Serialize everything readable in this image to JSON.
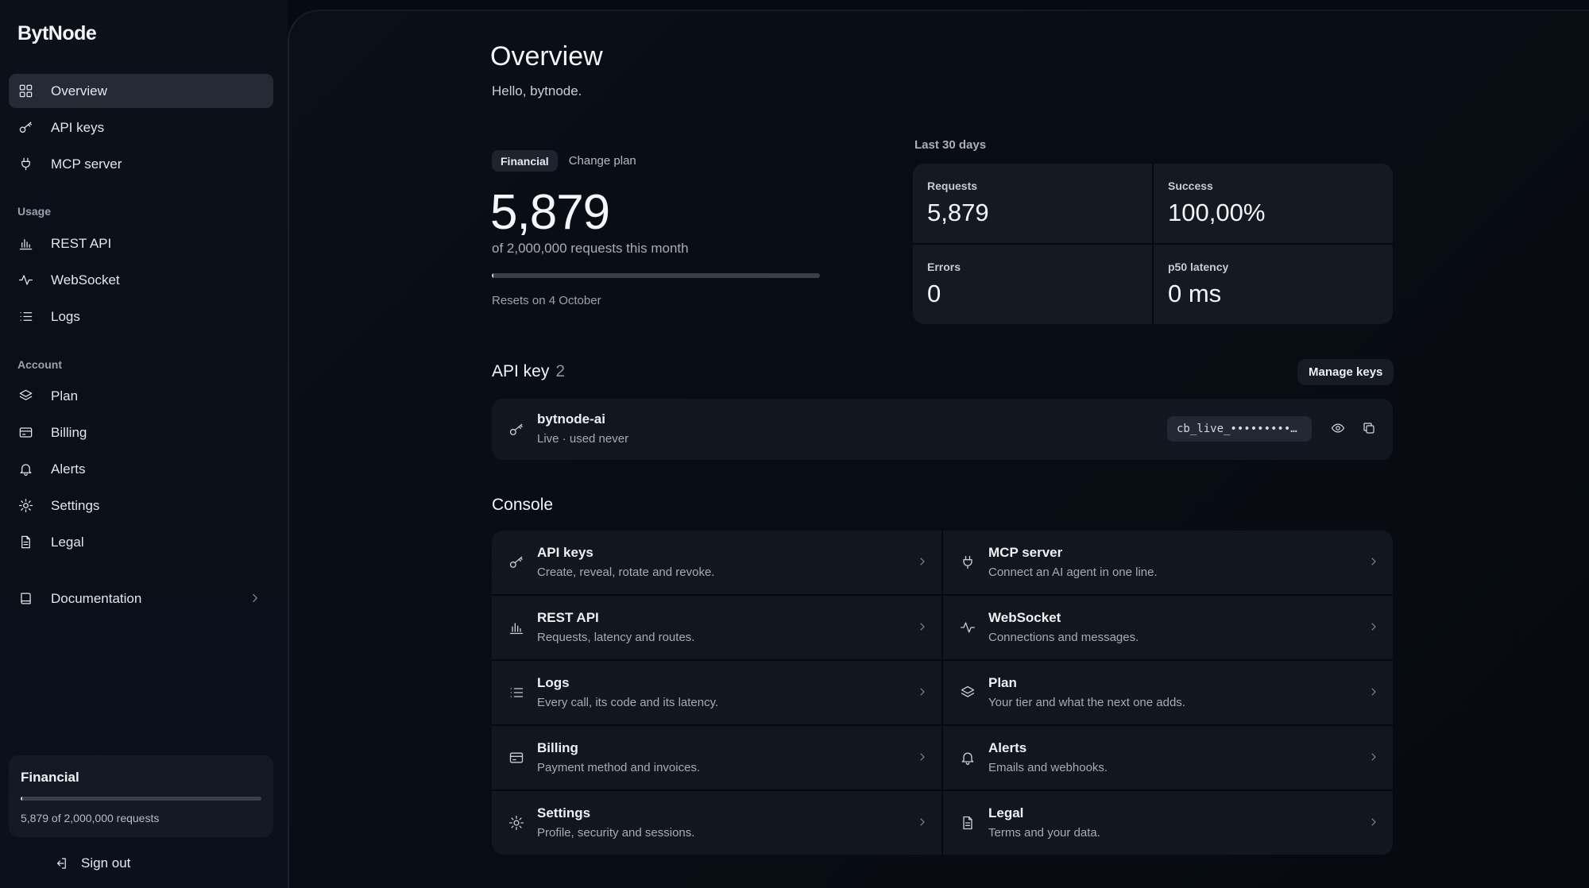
{
  "app": {
    "logo": "BytNode"
  },
  "sidebar": {
    "primary": [
      {
        "label": "Overview",
        "icon": "grid-icon",
        "active": true
      },
      {
        "label": "API keys",
        "icon": "key-icon"
      },
      {
        "label": "MCP server",
        "icon": "plug-icon"
      }
    ],
    "usage_label": "Usage",
    "usage": [
      {
        "label": "REST API",
        "icon": "bar-chart-icon"
      },
      {
        "label": "WebSocket",
        "icon": "activity-icon"
      },
      {
        "label": "Logs",
        "icon": "list-icon"
      }
    ],
    "account_label": "Account",
    "account": [
      {
        "label": "Plan",
        "icon": "layers-icon"
      },
      {
        "label": "Billing",
        "icon": "credit-card-icon"
      },
      {
        "label": "Alerts",
        "icon": "bell-icon"
      },
      {
        "label": "Settings",
        "icon": "gear-icon"
      },
      {
        "label": "Legal",
        "icon": "document-icon"
      }
    ],
    "documentation": {
      "label": "Documentation",
      "icon": "book-icon"
    },
    "plan_card": {
      "name": "Financial",
      "usage_text": "5,879 of 2,000,000 requests",
      "fraction": 0.0029
    },
    "sign_out": "Sign out"
  },
  "overview": {
    "title": "Overview",
    "greeting": "Hello, bytnode.",
    "plan_pill": "Financial",
    "change_plan": "Change plan",
    "requests_count": "5,879",
    "requests_sub": "of 2,000,000 requests this month",
    "usage_fraction": 0.0029,
    "resets": "Resets on 4 October"
  },
  "stats": {
    "period": "Last 30 days",
    "items": [
      {
        "label": "Requests",
        "value": "5,879"
      },
      {
        "label": "Success",
        "value": "100,00%"
      },
      {
        "label": "Errors",
        "value": "0"
      },
      {
        "label": "p50 latency",
        "value": "0 ms"
      }
    ]
  },
  "api_key": {
    "title": "API key",
    "count": "2",
    "manage": "Manage keys",
    "key": {
      "name": "bytnode-ai",
      "status": "Live · used never",
      "masked": "cb_live_•••••••••…"
    }
  },
  "console": {
    "title": "Console",
    "items": [
      {
        "title": "API keys",
        "desc": "Create, reveal, rotate and revoke.",
        "icon": "key-icon"
      },
      {
        "title": "MCP server",
        "desc": "Connect an AI agent in one line.",
        "icon": "plug-icon"
      },
      {
        "title": "REST API",
        "desc": "Requests, latency and routes.",
        "icon": "bar-chart-icon"
      },
      {
        "title": "WebSocket",
        "desc": "Connections and messages.",
        "icon": "activity-icon"
      },
      {
        "title": "Logs",
        "desc": "Every call, its code and its latency.",
        "icon": "list-icon"
      },
      {
        "title": "Plan",
        "desc": "Your tier and what the next one adds.",
        "icon": "layers-icon"
      },
      {
        "title": "Billing",
        "desc": "Payment method and invoices.",
        "icon": "credit-card-icon"
      },
      {
        "title": "Alerts",
        "desc": "Emails and webhooks.",
        "icon": "bell-icon"
      },
      {
        "title": "Settings",
        "desc": "Profile, security and sessions.",
        "icon": "gear-icon"
      },
      {
        "title": "Legal",
        "desc": "Terms and your data.",
        "icon": "document-icon"
      }
    ]
  }
}
